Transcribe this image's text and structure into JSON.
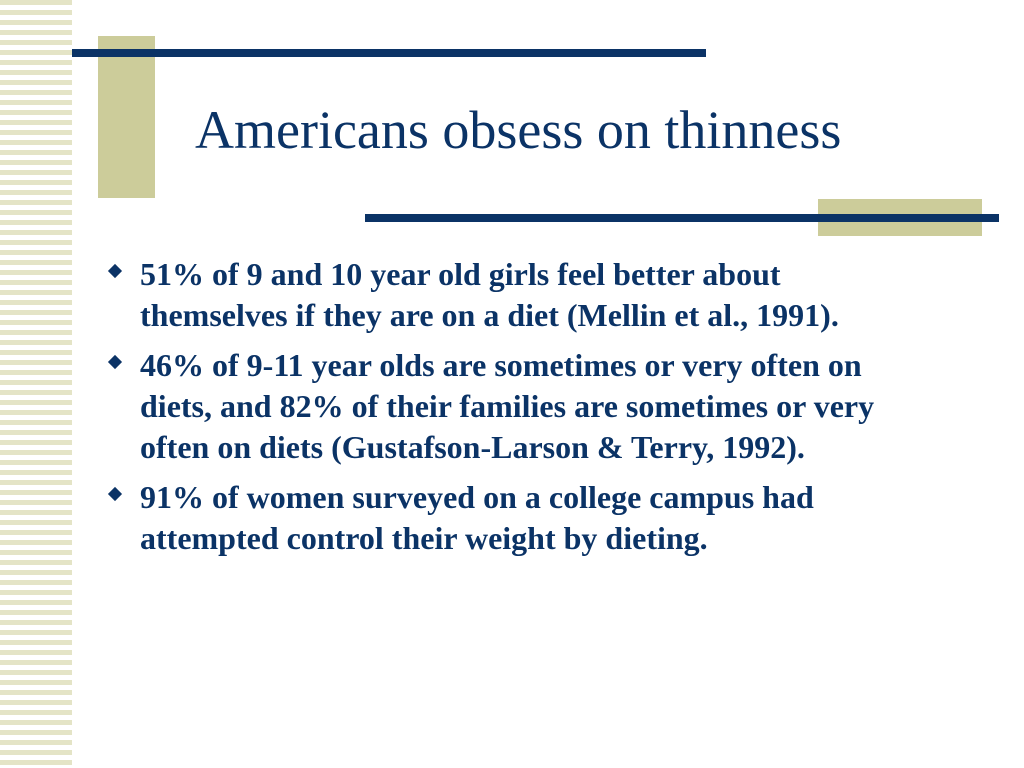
{
  "slide": {
    "title": "Americans obsess on thinness",
    "bullets": [
      {
        "text": "51% of 9 and 10 year old girls feel better about themselves if they are on a diet (Mellin et al., 1991)."
      },
      {
        "text": "46% of 9-11 year olds are sometimes or very often on diets, and 82% of their families are sometimes or very often on diets (Gustafson-Larson & Terry, 1992)."
      },
      {
        "text": "91% of women surveyed on a college campus had attempted control their weight by dieting."
      }
    ]
  },
  "colors": {
    "title_text": "#0b3366",
    "accent_rule": "#0b3366",
    "tan_block": "#cccc9a",
    "stripe": "#e4e4c6",
    "background": "#ffffff"
  },
  "icons": {
    "bullet_marker": "diamond-bullet-icon"
  }
}
